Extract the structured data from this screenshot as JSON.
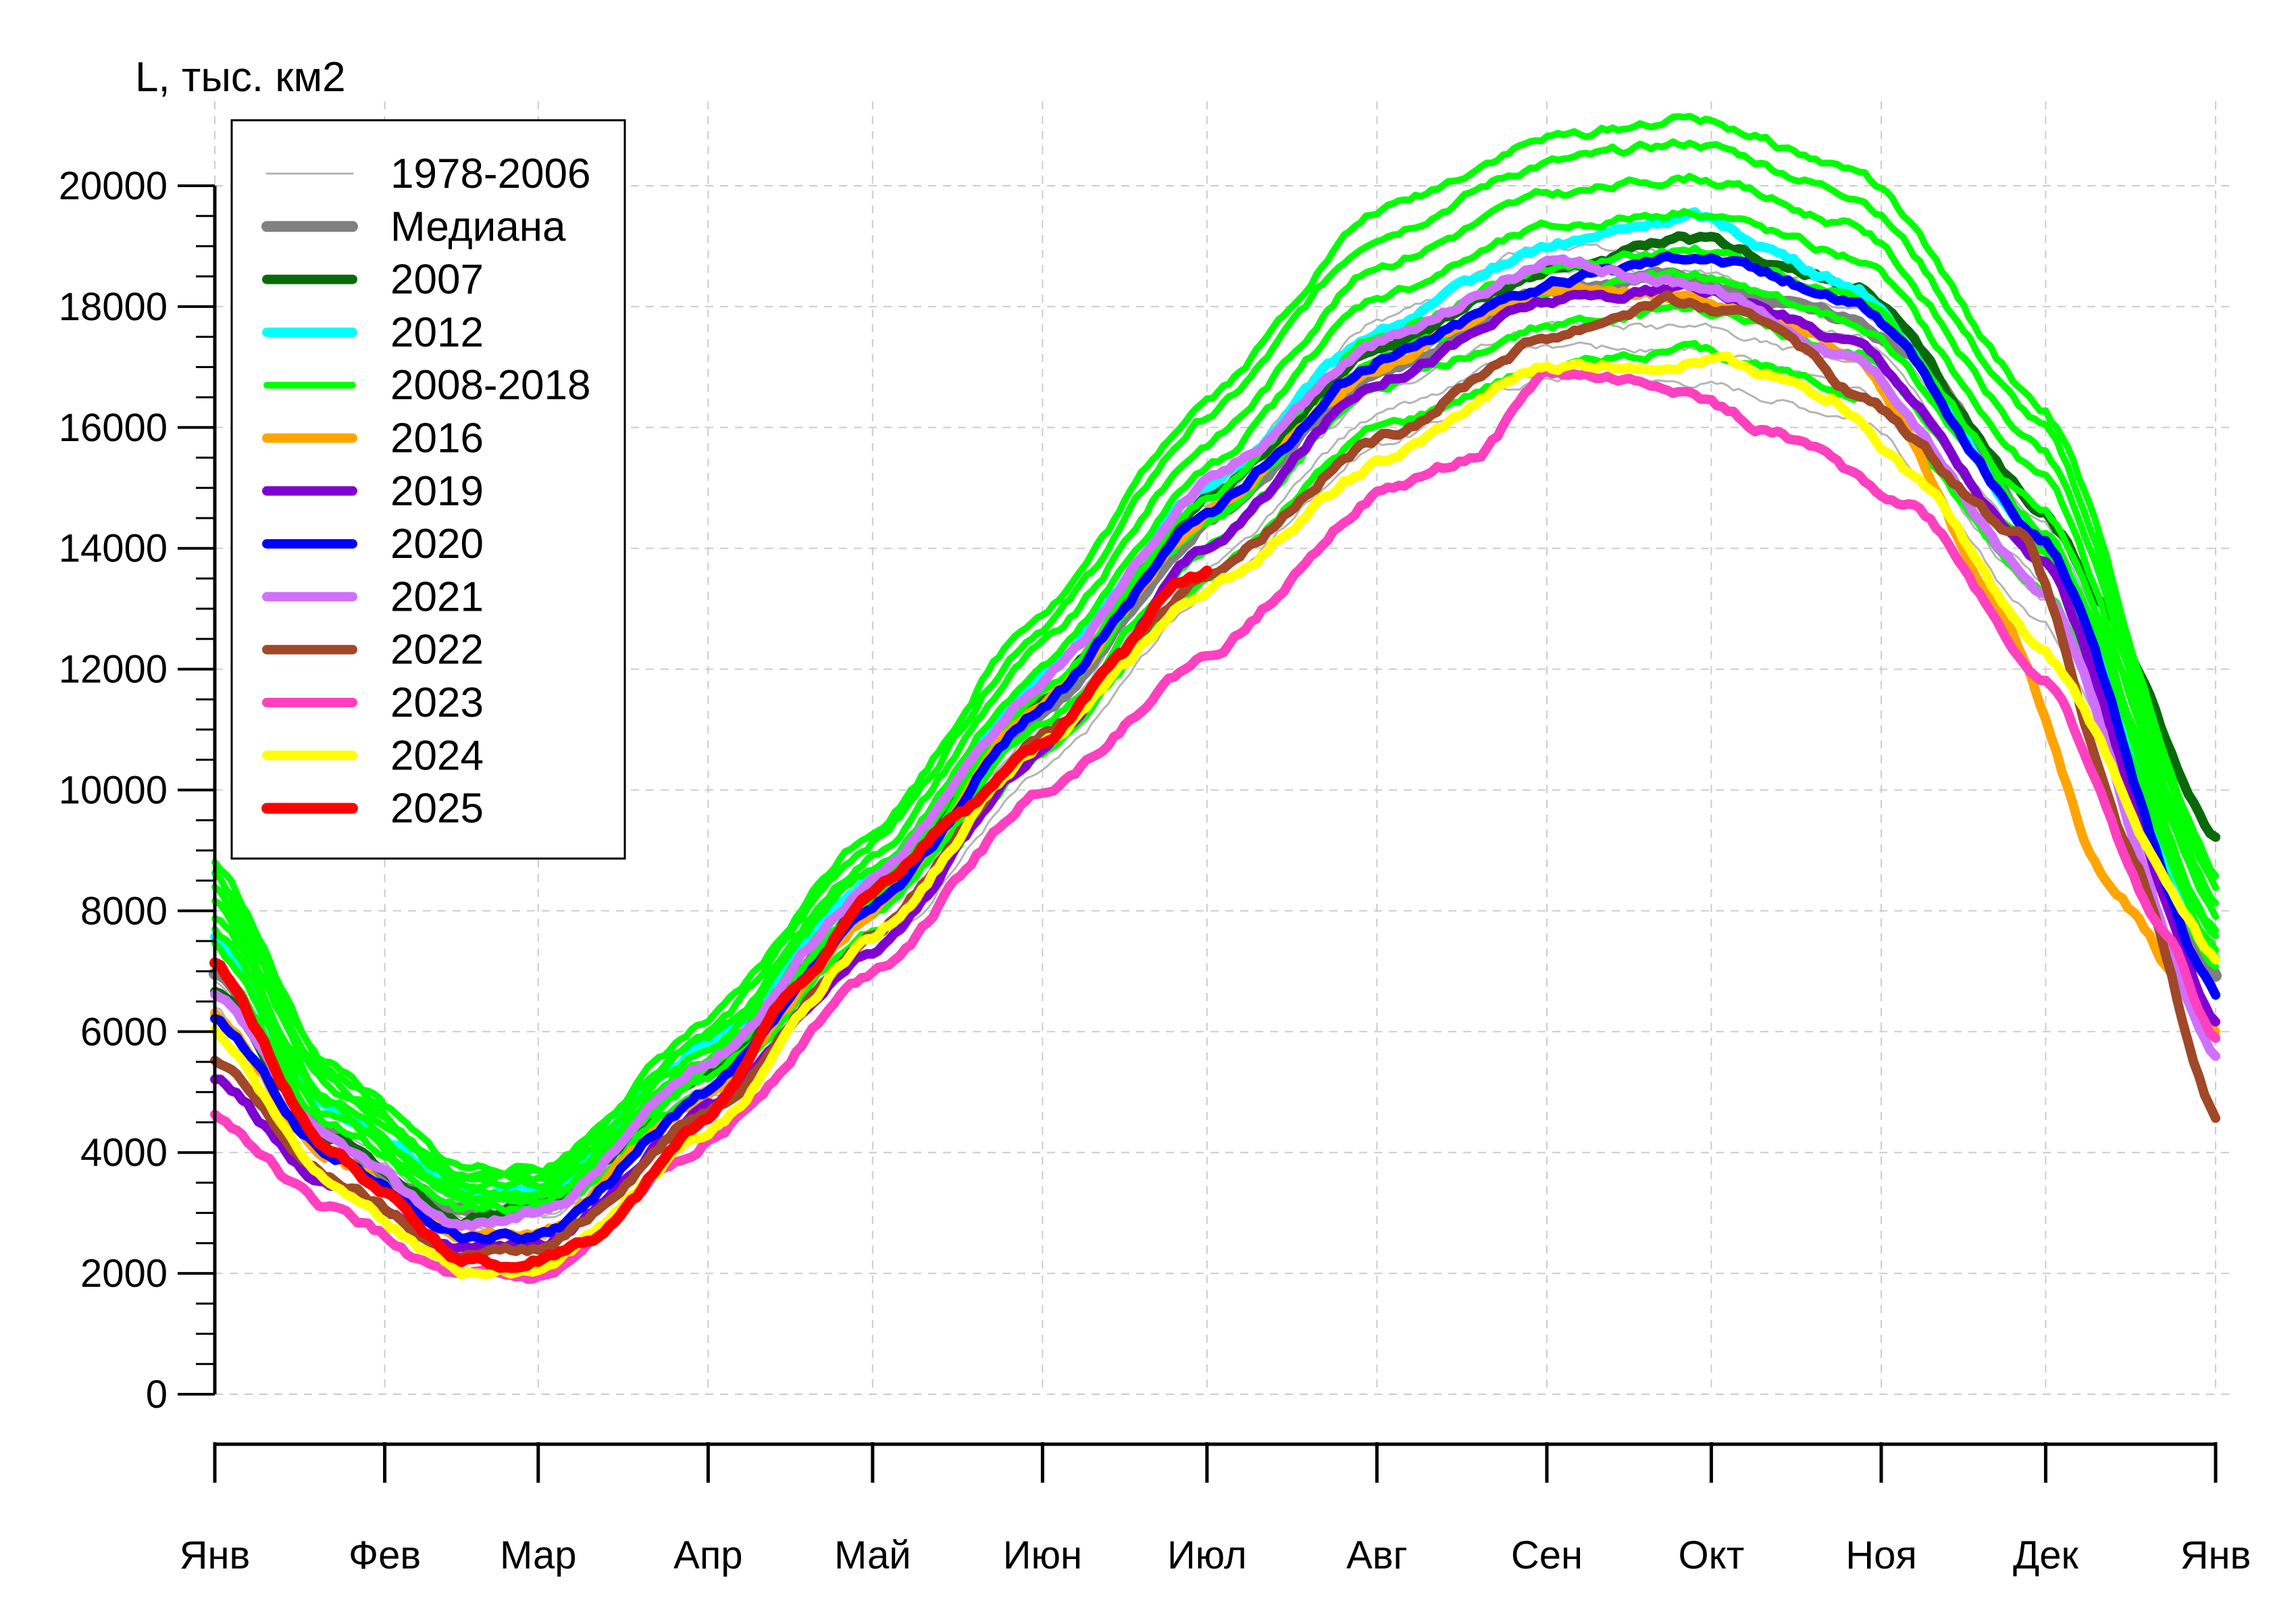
{
  "chart_data": {
    "type": "line",
    "ylabel": "L, тыс. км2",
    "ylim": [
      0,
      20000
    ],
    "yticks": [
      0,
      2000,
      4000,
      6000,
      8000,
      10000,
      12000,
      14000,
      16000,
      18000,
      20000
    ],
    "xlim": [
      0,
      365
    ],
    "x_ticks": [
      {
        "label": "Янв",
        "day": 0
      },
      {
        "label": "Фев",
        "day": 31
      },
      {
        "label": "Мар",
        "day": 59
      },
      {
        "label": "Апр",
        "day": 90
      },
      {
        "label": "Май",
        "day": 120
      },
      {
        "label": "Июн",
        "day": 151
      },
      {
        "label": "Июл",
        "day": 181
      },
      {
        "label": "Авг",
        "day": 212
      },
      {
        "label": "Сен",
        "day": 243
      },
      {
        "label": "Окт",
        "day": 273
      },
      {
        "label": "Ноя",
        "day": 304
      },
      {
        "label": "Дек",
        "day": 334
      },
      {
        "label": "Янв",
        "day": 365
      }
    ],
    "grid": true,
    "legend_position": "top-left",
    "series": [
      {
        "name": "1978-2006",
        "color": "#b4b4b4",
        "width": 3,
        "group": true,
        "points": [
          [
            0,
            6800
          ],
          [
            20,
            4200
          ],
          [
            45,
            3000
          ],
          [
            60,
            3100
          ],
          [
            90,
            5200
          ],
          [
            120,
            7800
          ],
          [
            151,
            11000
          ],
          [
            181,
            14200
          ],
          [
            212,
            16800
          ],
          [
            243,
            18000
          ],
          [
            270,
            17900
          ],
          [
            300,
            17300
          ],
          [
            334,
            13600
          ],
          [
            365,
            7200
          ]
        ],
        "variants": [
          -900,
          -500,
          -200,
          200,
          500,
          800
        ]
      },
      {
        "name": "Медиана",
        "color": "#808080",
        "width": 18,
        "points": [
          [
            0,
            7000
          ],
          [
            20,
            4300
          ],
          [
            35,
            3400
          ],
          [
            50,
            2900
          ],
          [
            60,
            3100
          ],
          [
            90,
            5400
          ],
          [
            120,
            8100
          ],
          [
            151,
            11300
          ],
          [
            181,
            14500
          ],
          [
            212,
            16900
          ],
          [
            243,
            18200
          ],
          [
            265,
            18500
          ],
          [
            290,
            18000
          ],
          [
            310,
            17300
          ],
          [
            334,
            14000
          ],
          [
            365,
            6900
          ]
        ]
      },
      {
        "name": "2007",
        "color": "#0a6a0a",
        "width": 14,
        "points": [
          [
            0,
            6700
          ],
          [
            20,
            4300
          ],
          [
            45,
            2900
          ],
          [
            60,
            3100
          ],
          [
            90,
            5300
          ],
          [
            120,
            8200
          ],
          [
            151,
            11500
          ],
          [
            181,
            14800
          ],
          [
            212,
            17300
          ],
          [
            243,
            18600
          ],
          [
            270,
            19100
          ],
          [
            300,
            18300
          ],
          [
            334,
            14600
          ],
          [
            345,
            13000
          ],
          [
            365,
            9200
          ]
        ]
      },
      {
        "name": "2012",
        "color": "#00ffff",
        "width": 14,
        "points": [
          [
            0,
            7600
          ],
          [
            20,
            4700
          ],
          [
            50,
            3300
          ],
          [
            60,
            3400
          ],
          [
            90,
            5800
          ],
          [
            120,
            8600
          ],
          [
            151,
            11900
          ],
          [
            181,
            15000
          ],
          [
            212,
            17600
          ],
          [
            243,
            19000
          ],
          [
            270,
            19500
          ],
          [
            300,
            18300
          ],
          [
            334,
            14100
          ],
          [
            365,
            7200
          ]
        ]
      },
      {
        "name": "2008-2018",
        "color": "#00ff00",
        "width": 10,
        "group": true,
        "points": [
          [
            0,
            8000
          ],
          [
            20,
            5000
          ],
          [
            45,
            3400
          ],
          [
            60,
            3400
          ],
          [
            90,
            5600
          ],
          [
            120,
            8500
          ],
          [
            151,
            11800
          ],
          [
            181,
            15000
          ],
          [
            212,
            17800
          ],
          [
            243,
            18900
          ],
          [
            270,
            19200
          ],
          [
            300,
            18400
          ],
          [
            334,
            14800
          ],
          [
            365,
            7800
          ]
        ],
        "variants": [
          -1400,
          -900,
          -500,
          -200,
          300,
          700,
          1100,
          1400
        ]
      },
      {
        "name": "2016",
        "color": "#ffa500",
        "width": 14,
        "points": [
          [
            0,
            6300
          ],
          [
            20,
            4000
          ],
          [
            45,
            2600
          ],
          [
            60,
            2700
          ],
          [
            90,
            5000
          ],
          [
            120,
            8000
          ],
          [
            151,
            11400
          ],
          [
            181,
            14600
          ],
          [
            212,
            17000
          ],
          [
            243,
            18300
          ],
          [
            270,
            18200
          ],
          [
            300,
            17200
          ],
          [
            325,
            13200
          ],
          [
            345,
            8500
          ],
          [
            365,
            6000
          ]
        ]
      },
      {
        "name": "2019",
        "color": "#8000d0",
        "width": 14,
        "points": [
          [
            0,
            5200
          ],
          [
            20,
            3500
          ],
          [
            45,
            2400
          ],
          [
            60,
            2500
          ],
          [
            90,
            4700
          ],
          [
            120,
            7300
          ],
          [
            151,
            10700
          ],
          [
            181,
            14000
          ],
          [
            212,
            16800
          ],
          [
            243,
            18100
          ],
          [
            270,
            18300
          ],
          [
            300,
            17400
          ],
          [
            334,
            13700
          ],
          [
            365,
            6200
          ]
        ]
      },
      {
        "name": "2020",
        "color": "#0000ff",
        "width": 14,
        "points": [
          [
            0,
            6200
          ],
          [
            20,
            4000
          ],
          [
            45,
            2600
          ],
          [
            60,
            2600
          ],
          [
            90,
            5000
          ],
          [
            120,
            8000
          ],
          [
            151,
            11400
          ],
          [
            181,
            14600
          ],
          [
            212,
            17100
          ],
          [
            243,
            18400
          ],
          [
            270,
            18900
          ],
          [
            300,
            18100
          ],
          [
            334,
            14100
          ],
          [
            365,
            6600
          ]
        ]
      },
      {
        "name": "2021",
        "color": "#d070ff",
        "width": 14,
        "points": [
          [
            0,
            6600
          ],
          [
            20,
            4200
          ],
          [
            45,
            2800
          ],
          [
            60,
            3000
          ],
          [
            90,
            5500
          ],
          [
            120,
            8500
          ],
          [
            151,
            11800
          ],
          [
            181,
            15100
          ],
          [
            212,
            17400
          ],
          [
            243,
            18700
          ],
          [
            270,
            18400
          ],
          [
            300,
            17100
          ],
          [
            334,
            13200
          ],
          [
            365,
            5600
          ]
        ]
      },
      {
        "name": "2022",
        "color": "#a04828",
        "width": 14,
        "points": [
          [
            0,
            5500
          ],
          [
            20,
            3600
          ],
          [
            45,
            2300
          ],
          [
            60,
            2400
          ],
          [
            90,
            4700
          ],
          [
            120,
            7600
          ],
          [
            151,
            10900
          ],
          [
            181,
            13600
          ],
          [
            212,
            15800
          ],
          [
            243,
            17500
          ],
          [
            265,
            18100
          ],
          [
            285,
            17700
          ],
          [
            300,
            16500
          ],
          [
            330,
            14200
          ],
          [
            350,
            8800
          ],
          [
            365,
            4600
          ]
        ]
      },
      {
        "name": "2023",
        "color": "#ff40c0",
        "width": 14,
        "points": [
          [
            0,
            4600
          ],
          [
            20,
            3100
          ],
          [
            45,
            1900
          ],
          [
            60,
            1900
          ],
          [
            90,
            4200
          ],
          [
            120,
            7000
          ],
          [
            151,
            10000
          ],
          [
            181,
            12200
          ],
          [
            212,
            14900
          ],
          [
            230,
            15500
          ],
          [
            243,
            16900
          ],
          [
            265,
            16700
          ],
          [
            285,
            15900
          ],
          [
            310,
            14700
          ],
          [
            334,
            11800
          ],
          [
            355,
            7800
          ],
          [
            365,
            5900
          ]
        ]
      },
      {
        "name": "2024",
        "color": "#ffff00",
        "width": 14,
        "points": [
          [
            0,
            6000
          ],
          [
            20,
            3600
          ],
          [
            45,
            2000
          ],
          [
            60,
            2100
          ],
          [
            90,
            4300
          ],
          [
            120,
            7600
          ],
          [
            151,
            10800
          ],
          [
            181,
            13300
          ],
          [
            212,
            15400
          ],
          [
            243,
            17000
          ],
          [
            275,
            17100
          ],
          [
            295,
            16500
          ],
          [
            310,
            15200
          ],
          [
            334,
            12200
          ],
          [
            365,
            7200
          ]
        ]
      },
      {
        "name": "2025",
        "color": "#ff0000",
        "width": 16,
        "points": [
          [
            0,
            7100
          ],
          [
            20,
            4100
          ],
          [
            30,
            3400
          ],
          [
            45,
            2200
          ],
          [
            55,
            2100
          ],
          [
            70,
            2600
          ],
          [
            90,
            4600
          ],
          [
            105,
            6600
          ],
          [
            120,
            8300
          ],
          [
            135,
            9600
          ],
          [
            151,
            10700
          ],
          [
            165,
            12200
          ],
          [
            175,
            13400
          ],
          [
            181,
            13600
          ]
        ]
      }
    ]
  }
}
